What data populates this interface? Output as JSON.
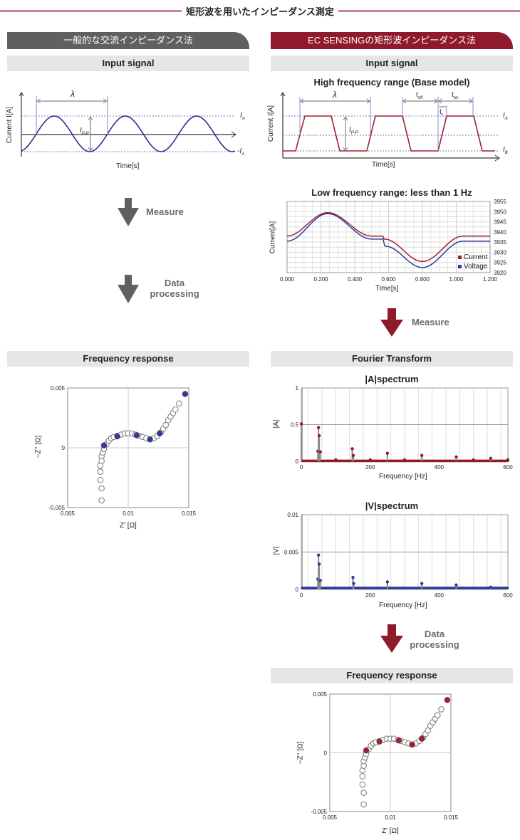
{
  "title": "矩形波を用いたインピーダンス測定",
  "colors": {
    "accent_red": "#8e1a2b",
    "gray_header": "#606060",
    "sine_blue": "#2f2f8f",
    "square_red": "#a0202f",
    "rule_pink": "#c98790"
  },
  "left": {
    "header": "一般的な交流インピーダンス法",
    "input_bar": "Input signal",
    "sine": {
      "ylabel": "Current I[A]",
      "xlabel": "Time[s]",
      "lambda": "λ",
      "ipp": "I",
      "ipp_sub": "P-P",
      "ia": "I",
      "ia_sub": "A",
      "neg_ia": "-I",
      "neg_ia_sub": "A"
    },
    "measure": "Measure",
    "processing": [
      "Data",
      "processing"
    ],
    "freq_bar": "Frequency response"
  },
  "right": {
    "header": "EC SENSINGの矩形波インピーダンス法",
    "input_bar": "Input signal",
    "square": {
      "title": "High frequency range (Base model)",
      "ylabel": "Current I[A]",
      "xlabel": "Time[s]",
      "lambda": "λ",
      "toff": "t",
      "toff_sub": "off",
      "ton": "t",
      "ton_sub": "on",
      "tr": "t",
      "tr_sub": "r",
      "ipp": "I",
      "ipp_sub": "P-P",
      "ia": "I",
      "ia_sub": "A",
      "ib": "I",
      "ib_sub": "B"
    },
    "measure": "Measure",
    "fourier_bar": "Fourier Transform",
    "processing": [
      "Data",
      "processing"
    ],
    "freq_bar": "Frequency response"
  },
  "chart_data": [
    {
      "id": "low_freq",
      "type": "line",
      "title": "Low frequency range: less than 1 Hz",
      "xlabel": "Time[s]",
      "ylabel": "Current[A]",
      "xlim": [
        0,
        1.2
      ],
      "ylim": [
        3920,
        3955
      ],
      "xticks": [
        "0.000",
        "0.200",
        "0.400",
        "0.600",
        "0.800",
        "1.000",
        "1.200"
      ],
      "yticks": [
        "3955",
        "3950",
        "3945",
        "3940",
        "3935",
        "3930",
        "3925",
        "3920"
      ],
      "grid": true,
      "legend": "bottom-right",
      "series": [
        {
          "name": "Current",
          "color": "#a0202f",
          "points": [
            [
              0,
              3938
            ],
            [
              0.24,
              3949.5
            ],
            [
              0.5,
              3938
            ],
            [
              0.565,
              3938
            ],
            [
              0.575,
              3936.5
            ],
            [
              0.8,
              3925.5
            ],
            [
              1.04,
              3938
            ],
            [
              1.2,
              3938
            ]
          ]
        },
        {
          "name": "Voltage",
          "color": "#2f3a9a",
          "points": [
            [
              0,
              3935.5
            ],
            [
              0.24,
              3949
            ],
            [
              0.5,
              3936.5
            ],
            [
              0.565,
              3936.5
            ],
            [
              0.58,
              3933
            ],
            [
              0.8,
              3922.5
            ],
            [
              1.04,
              3935.5
            ],
            [
              1.2,
              3935.5
            ]
          ]
        }
      ]
    },
    {
      "id": "a_spectrum",
      "type": "scatter",
      "title": "|A|spectrum",
      "xlabel": "Frequency [Hz]",
      "ylabel": "|A|",
      "xlim": [
        0,
        600
      ],
      "ylim": [
        0,
        1
      ],
      "xticks": [
        "0",
        "200",
        "400",
        "600"
      ],
      "yticks": [
        "1",
        "0.5",
        "0"
      ],
      "color": "#8e1a2b",
      "baseline": 0.005,
      "peaks": [
        [
          0,
          0.51
        ],
        [
          48,
          0.14
        ],
        [
          50,
          0.46
        ],
        [
          52,
          0.35
        ],
        [
          55,
          0.13
        ],
        [
          100,
          0.02
        ],
        [
          148,
          0.17
        ],
        [
          151,
          0.08
        ],
        [
          200,
          0.02
        ],
        [
          250,
          0.11
        ],
        [
          300,
          0.02
        ],
        [
          350,
          0.08
        ],
        [
          450,
          0.06
        ],
        [
          500,
          0.02
        ],
        [
          550,
          0.04
        ],
        [
          600,
          0.02
        ]
      ]
    },
    {
      "id": "v_spectrum",
      "type": "scatter",
      "title": "|V|spectrum",
      "xlabel": "Frequency [Hz]",
      "ylabel": "|V|",
      "xlim": [
        0,
        600
      ],
      "ylim": [
        0,
        0.01
      ],
      "xticks": [
        "0",
        "200",
        "400",
        "600"
      ],
      "yticks": [
        "0.01",
        "0.005",
        "0"
      ],
      "color": "#2f3a9a",
      "baseline": 0.0002,
      "peaks": [
        [
          48,
          0.0014
        ],
        [
          50,
          0.0046
        ],
        [
          52,
          0.0034
        ],
        [
          55,
          0.0012
        ],
        [
          150,
          0.0016
        ],
        [
          152,
          0.0008
        ],
        [
          250,
          0.001
        ],
        [
          350,
          0.0008
        ],
        [
          450,
          0.0006
        ],
        [
          550,
          0.0003
        ]
      ]
    },
    {
      "id": "nyquist",
      "type": "scatter",
      "xlabel": "Z' [Ω]",
      "ylabel": "−Z'' [Ω]",
      "xlim": [
        0.005,
        0.015
      ],
      "ylim": [
        -0.005,
        0.005
      ],
      "xticks": [
        "0.005",
        "0.01",
        "0.015"
      ],
      "yticks": [
        "0.005",
        "0",
        "-0.005"
      ],
      "open_points": [
        [
          0.0078,
          -0.0044
        ],
        [
          0.0078,
          -0.0034
        ],
        [
          0.0077,
          -0.0027
        ],
        [
          0.0077,
          -0.002
        ],
        [
          0.0077,
          -0.0015
        ],
        [
          0.0078,
          -0.0011
        ],
        [
          0.0078,
          -0.0007
        ],
        [
          0.0079,
          -0.0004
        ],
        [
          0.008,
          -0.0001
        ],
        [
          0.0082,
          0.0003
        ],
        [
          0.0084,
          0.0006
        ],
        [
          0.0086,
          0.0008
        ],
        [
          0.0088,
          0.0009
        ],
        [
          0.0091,
          0.001
        ],
        [
          0.0094,
          0.0011
        ],
        [
          0.0097,
          0.0012
        ],
        [
          0.01,
          0.0012
        ],
        [
          0.0103,
          0.0012
        ],
        [
          0.0106,
          0.0011
        ],
        [
          0.0109,
          0.001
        ],
        [
          0.0112,
          0.0009
        ],
        [
          0.0115,
          0.0008
        ],
        [
          0.0118,
          0.0007
        ],
        [
          0.0121,
          0.0008
        ],
        [
          0.0124,
          0.001
        ],
        [
          0.0127,
          0.0013
        ],
        [
          0.0129,
          0.0016
        ],
        [
          0.0131,
          0.0019
        ],
        [
          0.0133,
          0.0023
        ],
        [
          0.0135,
          0.0026
        ],
        [
          0.0137,
          0.0029
        ],
        [
          0.0139,
          0.0032
        ],
        [
          0.0142,
          0.0037
        ]
      ],
      "filled_points": [
        [
          0.008,
          0.0002
        ],
        [
          0.0091,
          0.00095
        ],
        [
          0.0107,
          0.00105
        ],
        [
          0.0118,
          0.0007
        ],
        [
          0.0126,
          0.0012
        ],
        [
          0.0147,
          0.0045
        ]
      ],
      "left_color": "#2f3a9a",
      "right_color": "#a0202f"
    }
  ]
}
